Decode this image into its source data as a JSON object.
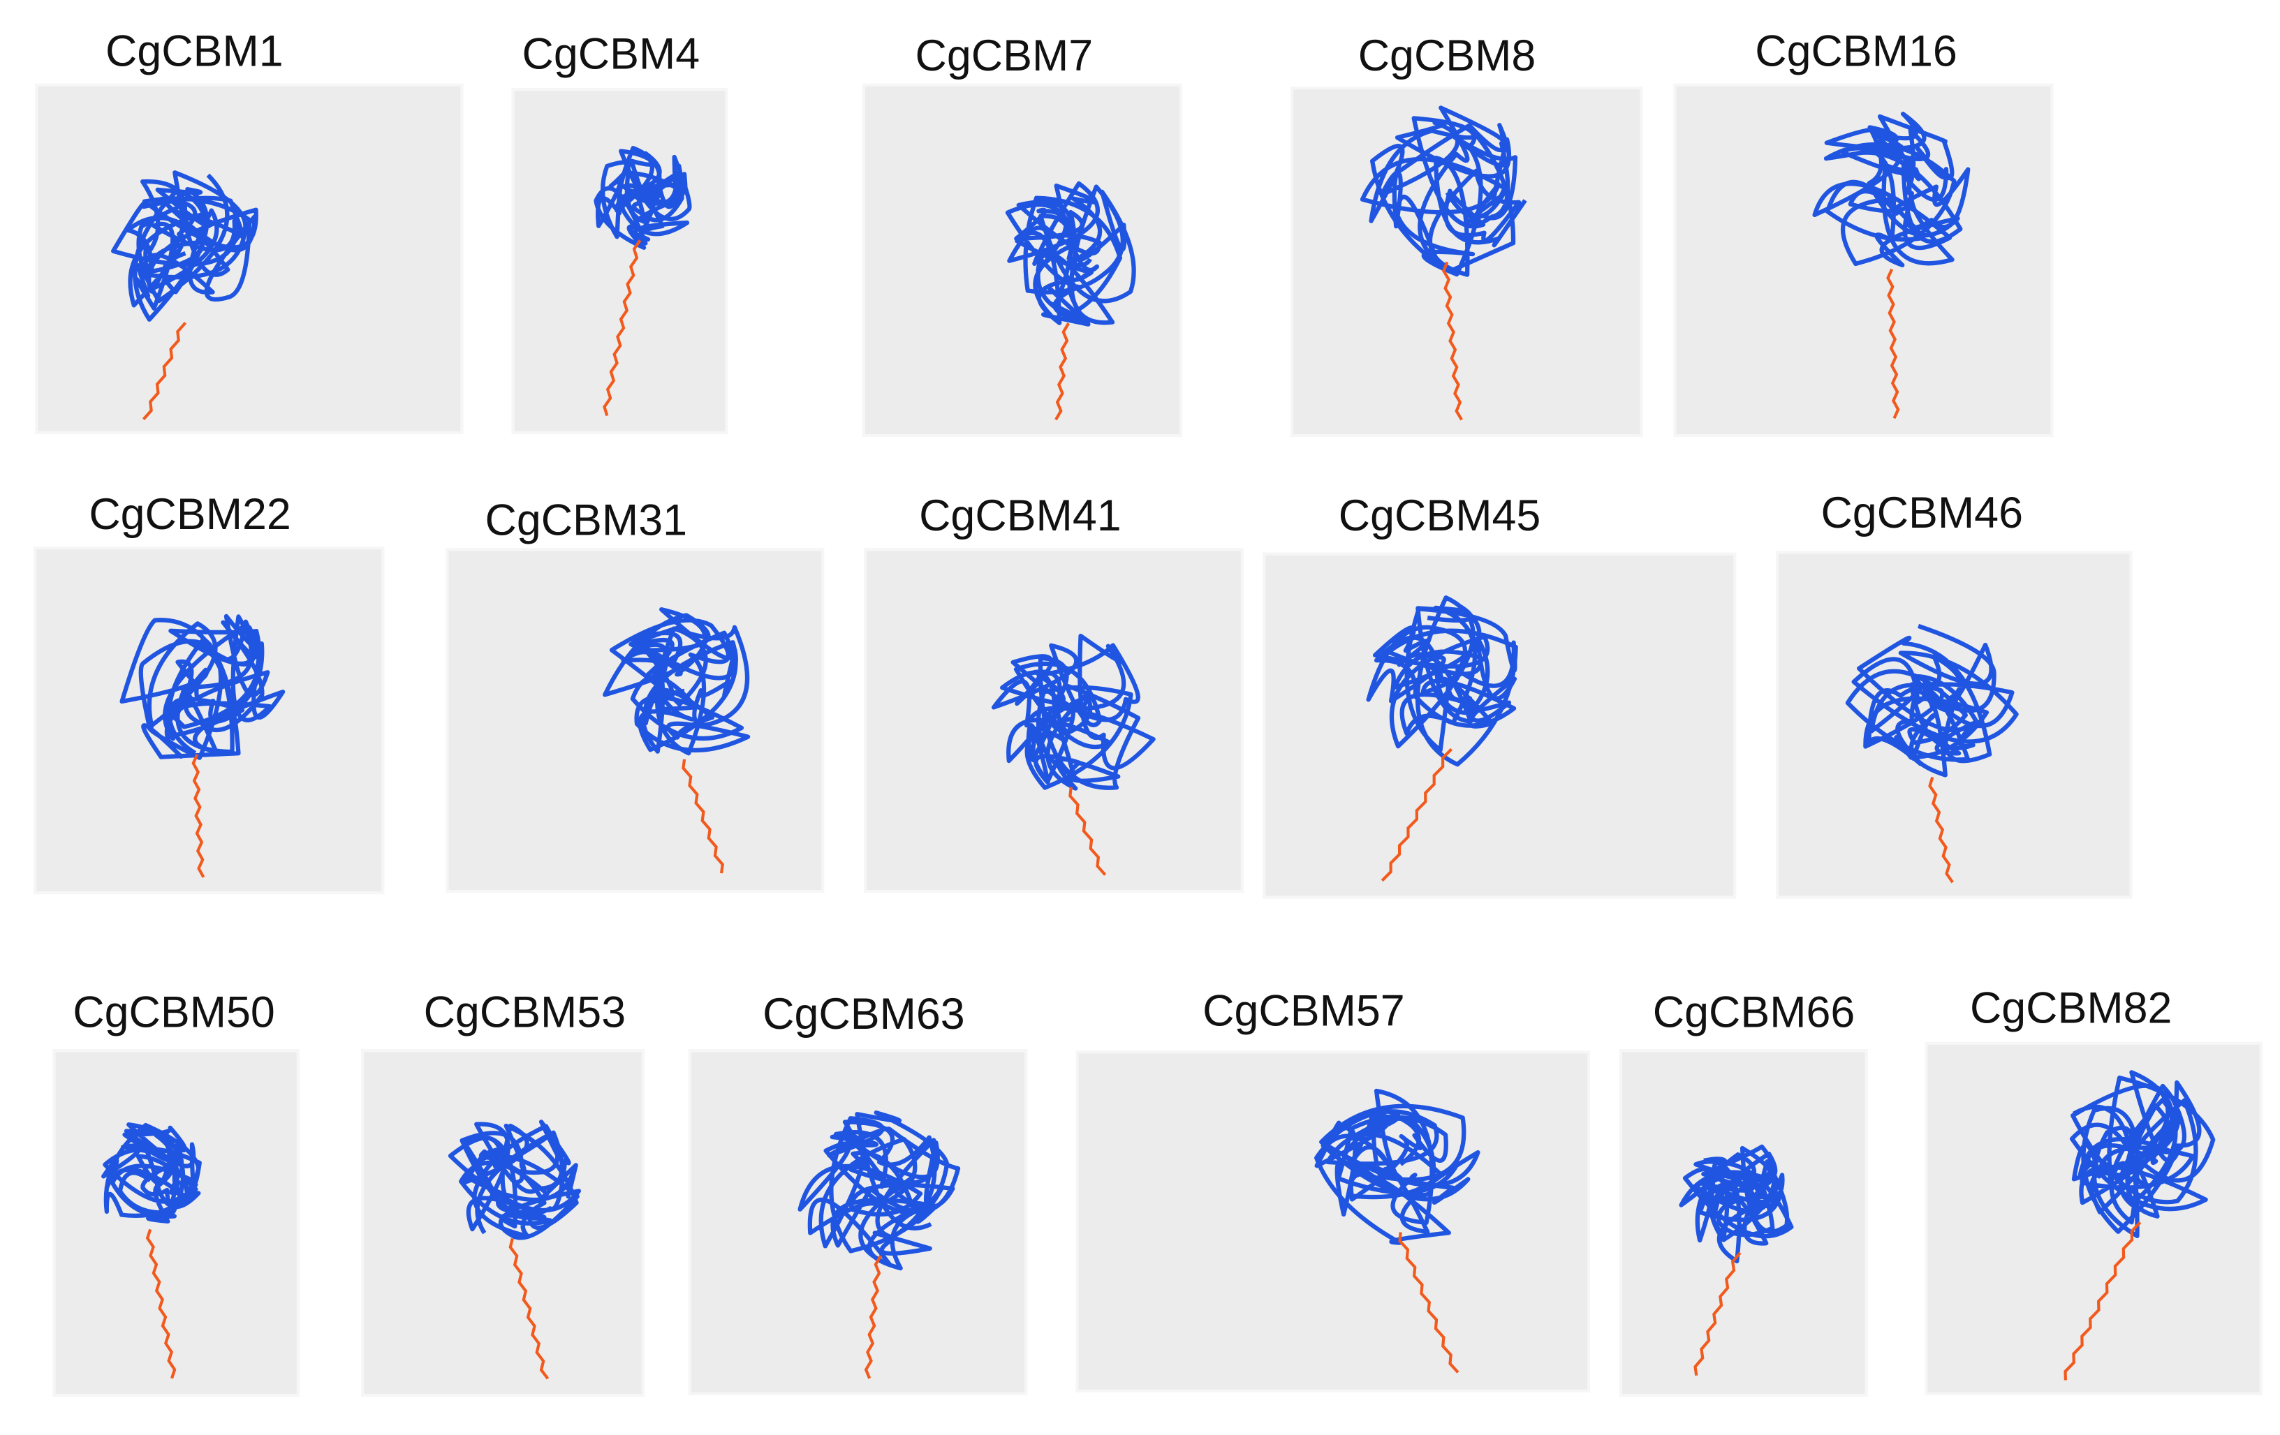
{
  "panels": [
    {
      "label": "CgCBM1"
    },
    {
      "label": "CgCBM4"
    },
    {
      "label": "CgCBM7"
    },
    {
      "label": "CgCBM8"
    },
    {
      "label": "CgCBM16"
    },
    {
      "label": "CgCBM22"
    },
    {
      "label": "CgCBM31"
    },
    {
      "label": "CgCBM41"
    },
    {
      "label": "CgCBM45"
    },
    {
      "label": "CgCBM46"
    },
    {
      "label": "CgCBM50"
    },
    {
      "label": "CgCBM53"
    },
    {
      "label": "CgCBM63"
    },
    {
      "label": "CgCBM57"
    },
    {
      "label": "CgCBM66"
    },
    {
      "label": "CgCBM82"
    }
  ]
}
